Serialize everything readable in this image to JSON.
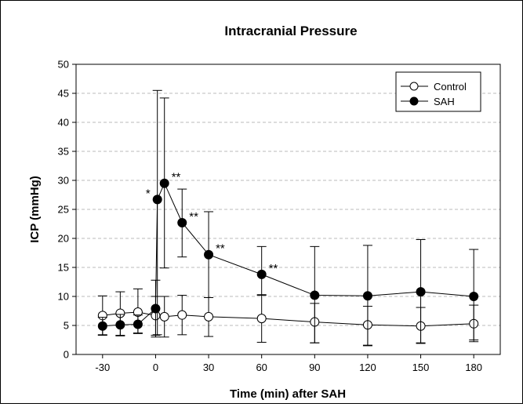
{
  "chart_data": {
    "type": "line",
    "title": "Intracranial Pressure",
    "xlabel": "Time (min) after SAH",
    "ylabel": "ICP (mmHg)",
    "xlim": [
      -45,
      195
    ],
    "ylim": [
      0,
      50
    ],
    "x_ticks": [
      -30,
      0,
      30,
      60,
      90,
      120,
      150,
      180
    ],
    "y_ticks": [
      0,
      5,
      10,
      15,
      20,
      25,
      30,
      35,
      40,
      45,
      50
    ],
    "grid": "horizontal dashed",
    "legend_position": "top-right",
    "series": [
      {
        "name": "Control",
        "marker": "open-circle",
        "color": "#000000",
        "x": [
          -30,
          -20,
          -10,
          0,
          5,
          15,
          30,
          60,
          90,
          120,
          150,
          180
        ],
        "y": [
          6.7,
          7.1,
          7.3,
          6.7,
          6.5,
          6.8,
          6.5,
          6.2,
          5.6,
          5.1,
          4.9,
          5.3
        ],
        "err_low": [
          3.4,
          3.9,
          3.7,
          3.4,
          3.5,
          3.4,
          3.4,
          4.1,
          3.6,
          3.5,
          3.0,
          3.1
        ],
        "err_high": [
          3.4,
          3.7,
          4.0,
          3.3,
          3.5,
          3.4,
          3.3,
          4.0,
          3.2,
          3.2,
          3.2,
          3.2
        ]
      },
      {
        "name": "SAH",
        "marker": "filled-circle",
        "color": "#000000",
        "x": [
          -30,
          -20,
          -10,
          0,
          1,
          5,
          15,
          30,
          60,
          90,
          120,
          150,
          180
        ],
        "y": [
          4.9,
          5.1,
          5.2,
          7.9,
          26.7,
          29.5,
          22.7,
          17.2,
          13.8,
          10.2,
          10.1,
          10.8,
          10.0
        ],
        "err_low": [
          1.5,
          1.8,
          1.5,
          4.9,
          23.3,
          14.6,
          5.9,
          7.4,
          3.5,
          8.2,
          8.6,
          8.8,
          7.5
        ],
        "err_high": [
          1.5,
          1.8,
          1.6,
          4.9,
          18.8,
          14.7,
          5.8,
          7.4,
          4.8,
          8.4,
          8.7,
          9.0,
          8.1
        ],
        "annotations": [
          "",
          "",
          "",
          "",
          "*",
          "**",
          "**",
          "**",
          "**",
          "",
          "",
          "",
          ""
        ]
      }
    ]
  }
}
